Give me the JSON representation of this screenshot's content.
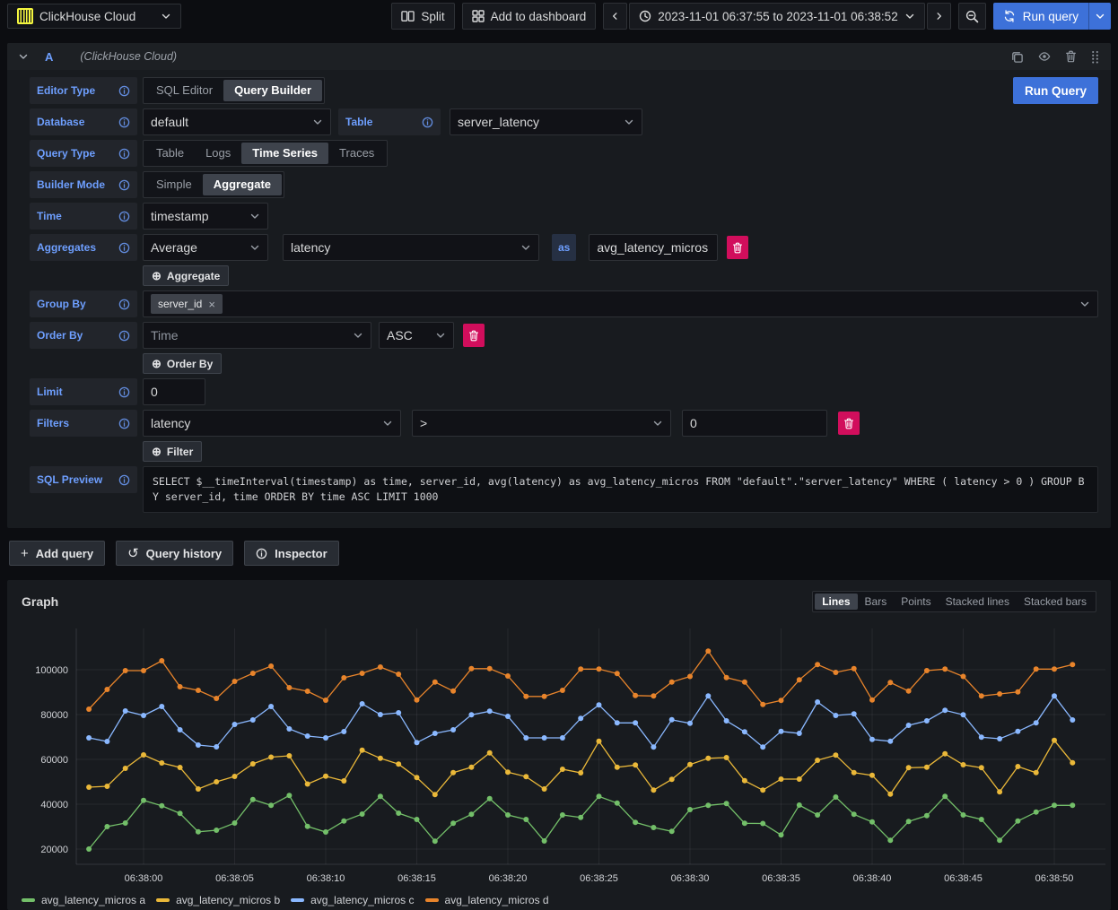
{
  "topbar": {
    "datasource_label": "ClickHouse Cloud",
    "split_label": "Split",
    "add_to_dashboard_label": "Add to dashboard",
    "time_range_label": "2023-11-01 06:37:55 to 2023-11-01 06:38:52",
    "run_query_label": "Run query"
  },
  "query_editor": {
    "ref_id": "A",
    "datasource_name": "(ClickHouse Cloud)",
    "run_query_label": "Run Query",
    "editor_type": {
      "label": "Editor Type",
      "options": [
        "SQL Editor",
        "Query Builder"
      ],
      "selected": "Query Builder"
    },
    "database": {
      "label": "Database",
      "value": "default"
    },
    "table": {
      "label": "Table",
      "value": "server_latency"
    },
    "query_type": {
      "label": "Query Type",
      "options": [
        "Table",
        "Logs",
        "Time Series",
        "Traces"
      ],
      "selected": "Time Series"
    },
    "builder_mode": {
      "label": "Builder Mode",
      "options": [
        "Simple",
        "Aggregate"
      ],
      "selected": "Aggregate"
    },
    "time_field": {
      "label": "Time",
      "value": "timestamp"
    },
    "aggregates": {
      "label": "Aggregates",
      "function": "Average",
      "column": "latency",
      "as_label": "as",
      "alias": "avg_latency_micros",
      "add_button": "Aggregate"
    },
    "group_by": {
      "label": "Group By",
      "tags": [
        "server_id"
      ]
    },
    "order_by": {
      "label": "Order By",
      "field": "Time",
      "direction": "ASC",
      "add_button": "Order By"
    },
    "limit": {
      "label": "Limit",
      "value": "0"
    },
    "filters": {
      "label": "Filters",
      "column": "latency",
      "operator": ">",
      "value": "0",
      "add_button": "Filter"
    },
    "sql_preview": {
      "label": "SQL Preview",
      "sql": "SELECT $__timeInterval(timestamp) as time, server_id, avg(latency) as avg_latency_micros FROM \"default\".\"server_latency\" WHERE ( latency > 0 ) GROUP BY server_id, time ORDER BY time ASC LIMIT 1000"
    }
  },
  "actions": {
    "add_query_label": "Add query",
    "query_history_label": "Query history",
    "inspector_label": "Inspector"
  },
  "graph_panel": {
    "title": "Graph",
    "mode_toggle": {
      "options": [
        "Lines",
        "Bars",
        "Points",
        "Stacked lines",
        "Stacked bars"
      ],
      "selected": "Lines"
    }
  },
  "chart_data": {
    "type": "line",
    "title": "Graph",
    "x_start_time": "06:37:57",
    "x_interval_seconds": 1,
    "x_ticks": [
      "06:38:00",
      "06:38:05",
      "06:38:10",
      "06:38:15",
      "06:38:20",
      "06:38:25",
      "06:38:30",
      "06:38:35",
      "06:38:40",
      "06:38:45",
      "06:38:50"
    ],
    "y_ticks": [
      20000,
      40000,
      60000,
      80000,
      100000
    ],
    "ylim": [
      13200,
      118400
    ],
    "grid": true,
    "legend_position": "bottom",
    "series": [
      {
        "name": "avg_latency_micros a",
        "color": "#73BF69",
        "values": [
          20000,
          30000,
          31600,
          41700,
          39300,
          35900,
          27700,
          28400,
          31600,
          42100,
          39500,
          43900,
          30100,
          27600,
          32500,
          35600,
          43500,
          36000,
          33200,
          23500,
          31500,
          35500,
          42500,
          35200,
          33200,
          23600,
          35200,
          34100,
          43500,
          40500,
          31900,
          29600,
          27900,
          37600,
          39500,
          40300,
          31500,
          31400,
          26300,
          39600,
          35200,
          43200,
          35500,
          32100,
          23900,
          32300,
          34900,
          43500,
          35200,
          33200,
          23900,
          32500,
          36500,
          39500,
          39500
        ]
      },
      {
        "name": "avg_latency_micros b",
        "color": "#EAB839",
        "values": [
          47600,
          48000,
          56000,
          62000,
          58400,
          56400,
          46800,
          50000,
          52400,
          58000,
          61000,
          61600,
          49000,
          52500,
          50400,
          64100,
          60500,
          57900,
          51900,
          44300,
          54100,
          56500,
          62900,
          54300,
          52300,
          46800,
          55600,
          54000,
          68100,
          56500,
          57500,
          46300,
          51100,
          57700,
          60500,
          60800,
          50500,
          46300,
          51200,
          51200,
          59600,
          61900,
          54100,
          52900,
          44500,
          56300,
          56500,
          62500,
          57600,
          56300,
          45500,
          56800,
          54100,
          68500,
          58500
        ]
      },
      {
        "name": "avg_latency_micros c",
        "color": "#8AB8FF",
        "values": [
          69600,
          68000,
          81600,
          79600,
          83600,
          73200,
          66400,
          65600,
          75600,
          77600,
          83600,
          73600,
          70400,
          69600,
          72400,
          84800,
          80000,
          80800,
          67500,
          71600,
          73200,
          79900,
          81500,
          79200,
          69600,
          69600,
          69600,
          78300,
          84300,
          76300,
          76300,
          65500,
          77700,
          76100,
          88300,
          77200,
          72300,
          65500,
          72500,
          71600,
          85600,
          79600,
          80300,
          68900,
          68100,
          75200,
          77200,
          81900,
          79900,
          69900,
          69200,
          72500,
          76300,
          88300,
          77600
        ]
      },
      {
        "name": "avg_latency_micros d",
        "color": "#E8842B",
        "values": [
          82400,
          91200,
          99600,
          99600,
          104000,
          92400,
          90800,
          87200,
          94800,
          98400,
          101600,
          92000,
          90400,
          86400,
          96400,
          98400,
          101200,
          98000,
          86500,
          94500,
          90500,
          100500,
          100500,
          97200,
          88100,
          88100,
          90800,
          100300,
          100300,
          98300,
          88500,
          88300,
          94500,
          97000,
          108300,
          96500,
          94500,
          84500,
          86300,
          95500,
          102300,
          98800,
          100500,
          86500,
          94300,
          90500,
          99600,
          100300,
          97000,
          88300,
          89200,
          90100,
          100300,
          100300,
          102300
        ]
      }
    ]
  }
}
